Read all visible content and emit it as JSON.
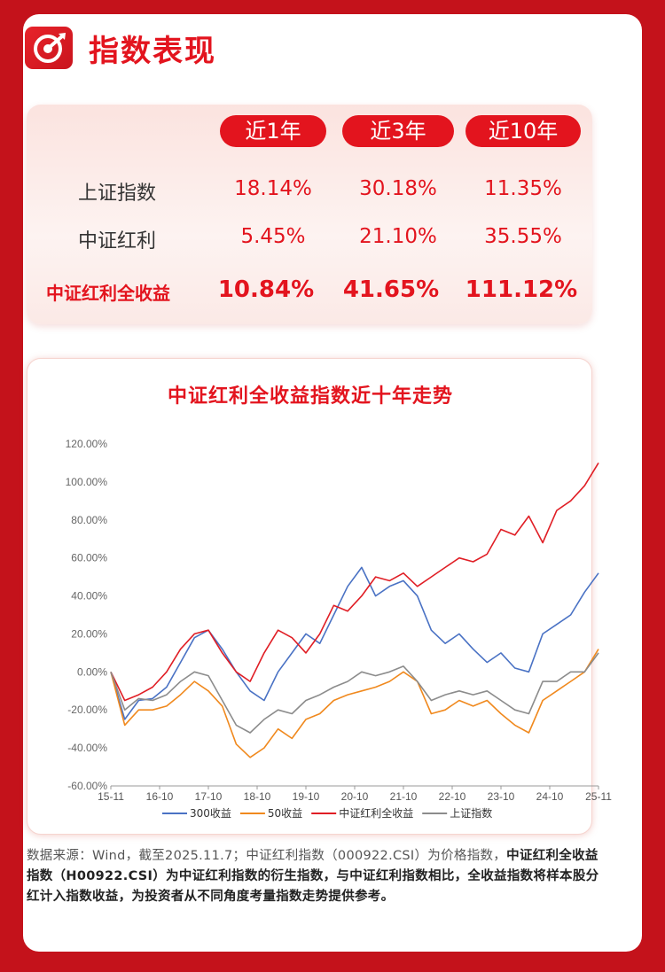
{
  "header": {
    "title": "指数表现",
    "logo_icon": "target-icon"
  },
  "table": {
    "columns": [
      "近1年",
      "近3年",
      "近10年"
    ],
    "rows": [
      {
        "label": "上证指数",
        "values": [
          "18.14%",
          "30.18%",
          "11.35%"
        ]
      },
      {
        "label": "中证红利",
        "values": [
          "5.45%",
          "21.10%",
          "35.55%"
        ]
      },
      {
        "label": "中证红利全收益",
        "values": [
          "10.84%",
          "41.65%",
          "111.12%"
        ]
      }
    ]
  },
  "chart_data": {
    "type": "line",
    "title": "中证红利全收益指数近十年走势",
    "xlabel": "",
    "ylabel": "",
    "x_ticks": [
      "15-11",
      "16-10",
      "17-10",
      "18-10",
      "19-10",
      "20-10",
      "21-10",
      "22-10",
      "23-10",
      "24-10",
      "25-11"
    ],
    "y_ticks": [
      "120.00%",
      "100.00%",
      "80.00%",
      "60.00%",
      "40.00%",
      "20.00%",
      "0.00%",
      "-20.00%",
      "-40.00%",
      "-60.00%"
    ],
    "ylim": [
      -60,
      120
    ],
    "legend_position": "bottom",
    "series": [
      {
        "name": "300收益",
        "color": "#4a72c4",
        "values": [
          0,
          -25,
          -15,
          -14,
          -8,
          5,
          18,
          22,
          12,
          0,
          -10,
          -15,
          0,
          10,
          20,
          15,
          30,
          45,
          55,
          40,
          45,
          48,
          40,
          22,
          15,
          20,
          12,
          5,
          10,
          2,
          0,
          20,
          25,
          30,
          42,
          52
        ]
      },
      {
        "name": "50收益",
        "color": "#f0891e",
        "values": [
          0,
          -28,
          -20,
          -20,
          -18,
          -12,
          -5,
          -10,
          -18,
          -38,
          -45,
          -40,
          -30,
          -35,
          -25,
          -22,
          -15,
          -12,
          -10,
          -8,
          -5,
          0,
          -5,
          -22,
          -20,
          -15,
          -18,
          -15,
          -22,
          -28,
          -32,
          -15,
          -10,
          -5,
          0,
          12
        ]
      },
      {
        "name": "中证红利全收益",
        "color": "#e01e25",
        "values": [
          0,
          -15,
          -12,
          -8,
          0,
          12,
          20,
          22,
          10,
          0,
          -5,
          10,
          22,
          18,
          10,
          20,
          35,
          32,
          40,
          50,
          48,
          52,
          45,
          50,
          55,
          60,
          58,
          62,
          75,
          72,
          82,
          68,
          85,
          90,
          98,
          110
        ]
      },
      {
        "name": "上证指数",
        "color": "#8c8c8c",
        "values": [
          0,
          -20,
          -14,
          -15,
          -12,
          -5,
          0,
          -2,
          -15,
          -28,
          -32,
          -25,
          -20,
          -22,
          -15,
          -12,
          -8,
          -5,
          0,
          -2,
          0,
          3,
          -5,
          -15,
          -12,
          -10,
          -12,
          -10,
          -15,
          -20,
          -22,
          -5,
          -5,
          0,
          0,
          10
        ]
      }
    ]
  },
  "footnote": {
    "line1": "数据来源：Wind，截至2025.11.7；中证红利指数（000922.CSI）为价格指数，",
    "bold_text": "中证红利全收益指数（H00922.CSI）为中证红利指数的衍生指数，与中证红利指数相比，全收益指数将样本股分红计入指数收益，为投资者从不同角度考量指数走势提供参考。"
  }
}
